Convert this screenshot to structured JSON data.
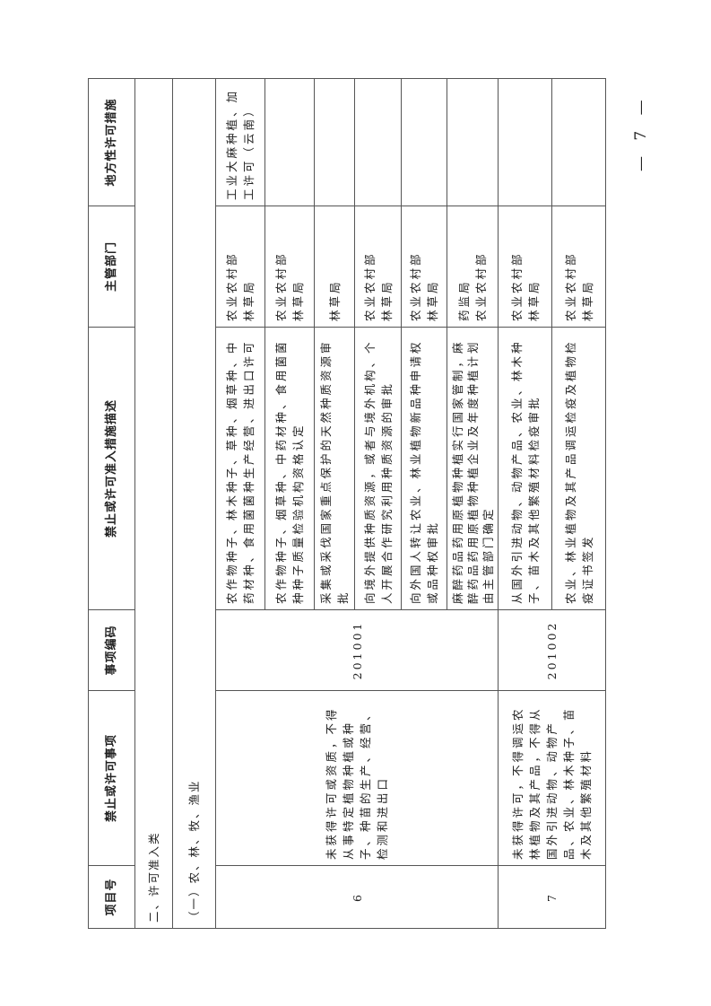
{
  "headers": [
    "项目号",
    "禁止或许可事项",
    "事项编码",
    "禁止或许可准入措施描述",
    "主管部门",
    "地方性许可措施"
  ],
  "section": "二、许可准入类",
  "subsection": "（一）农、林、牧、渔业",
  "items": [
    {
      "no": "6",
      "matter": "未获得许可或资质，不得从事特定植物种植或种子、种苗的生产、经营、检测和进出口",
      "code": "201001",
      "measures": [
        {
          "desc": "农作物种子、林木种子、草种、烟草种、中药材种、食用菌菌种生产经营、进出口许可",
          "dept": "农业农村部\n林草局",
          "local": "工业大麻种植、加工许可（云南）"
        },
        {
          "desc": "农作物种子、烟草种、中药材种、食用菌菌种种子质量检验机构资格认定",
          "dept": "农业农村部\n林草局",
          "local": ""
        },
        {
          "desc": "采集或采伐国家重点保护的天然种质资源审批",
          "dept": "林草局",
          "local": ""
        },
        {
          "desc": "向境外提供种质资源，或者与境外机构、个人开展合作研究利用种质资源的审批",
          "dept": "农业农村部\n林草局",
          "local": ""
        },
        {
          "desc": "向外国人转让农业、林业植物新品种申请权或品种权审批",
          "dept": "农业农村部\n林草局",
          "local": ""
        },
        {
          "desc": "麻醉药品药用原植物种植实行国家管制，麻醉药品药用原植物种植企业及年度种植计划由主管部门确定",
          "dept": "药监局\n农业农村部",
          "local": ""
        }
      ]
    },
    {
      "no": "7",
      "matter": "未获得许可，不得调运农林植物及其产品，不得从国外引进动物、动物产品、农业、林木种子、苗木及其他繁殖材料",
      "code": "201002",
      "measures": [
        {
          "desc": "从国外引进动物、动物产品、农业、林木种子、苗木及其他繁殖材料检疫审批",
          "dept": "农业农村部\n林草局",
          "local": ""
        },
        {
          "desc": "农业、林业植物及其产品调运检疫及植物检疫证书签发",
          "dept": "农业农村部\n林草局",
          "local": ""
        }
      ]
    }
  ],
  "page_number": "— 7 —"
}
